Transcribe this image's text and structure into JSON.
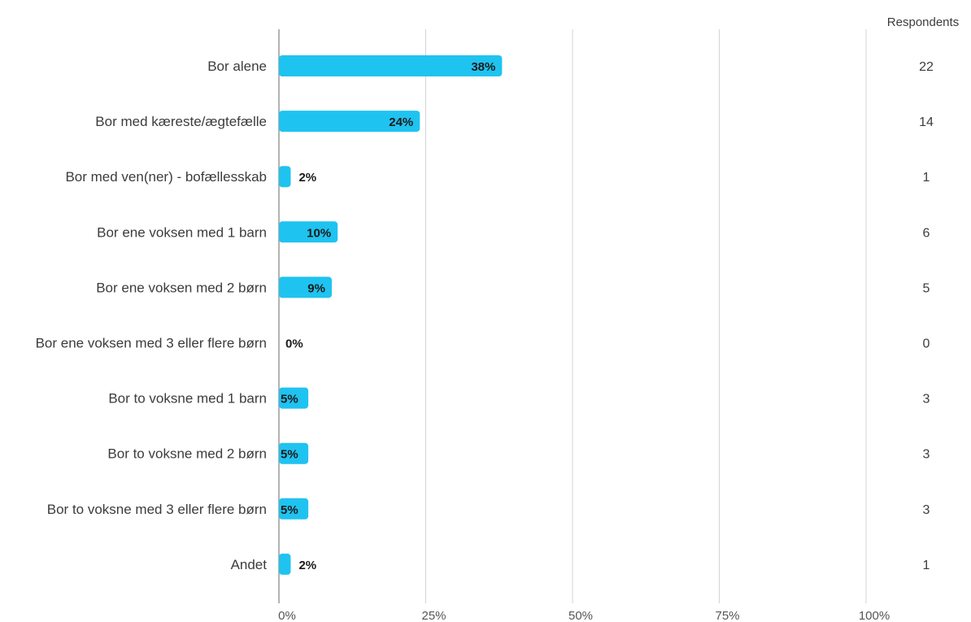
{
  "chart_data": {
    "type": "bar",
    "orientation": "horizontal",
    "categories": [
      "Bor alene",
      "Bor med kæreste/ægtefælle",
      "Bor med ven(ner) - bofællesskab",
      "Bor ene voksen med 1 barn",
      "Bor ene voksen med 2 børn",
      "Bor ene voksen med 3 eller flere børn",
      "Bor to voksne med 1 barn",
      "Bor to voksne med 2 børn",
      "Bor to voksne med 3 eller flere børn",
      "Andet"
    ],
    "values": [
      38,
      24,
      2,
      10,
      9,
      0,
      5,
      5,
      5,
      2
    ],
    "value_labels": [
      "38%",
      "24%",
      "2%",
      "10%",
      "9%",
      "0%",
      "5%",
      "5%",
      "5%",
      "2%"
    ],
    "respondents_header": "Respondents",
    "respondents": [
      "22",
      "14",
      "1",
      "6",
      "5",
      "0",
      "3",
      "3",
      "3",
      "1"
    ],
    "xlim": [
      0,
      100
    ],
    "x_ticks": [
      0,
      25,
      50,
      75,
      100
    ],
    "x_tick_labels": [
      "0%",
      "25%",
      "50%",
      "75%",
      "100%"
    ],
    "grid": true,
    "bar_color": "#1fc3f0",
    "grid_color": "#d4d4d4",
    "axis_color": "#9a9a9a"
  }
}
